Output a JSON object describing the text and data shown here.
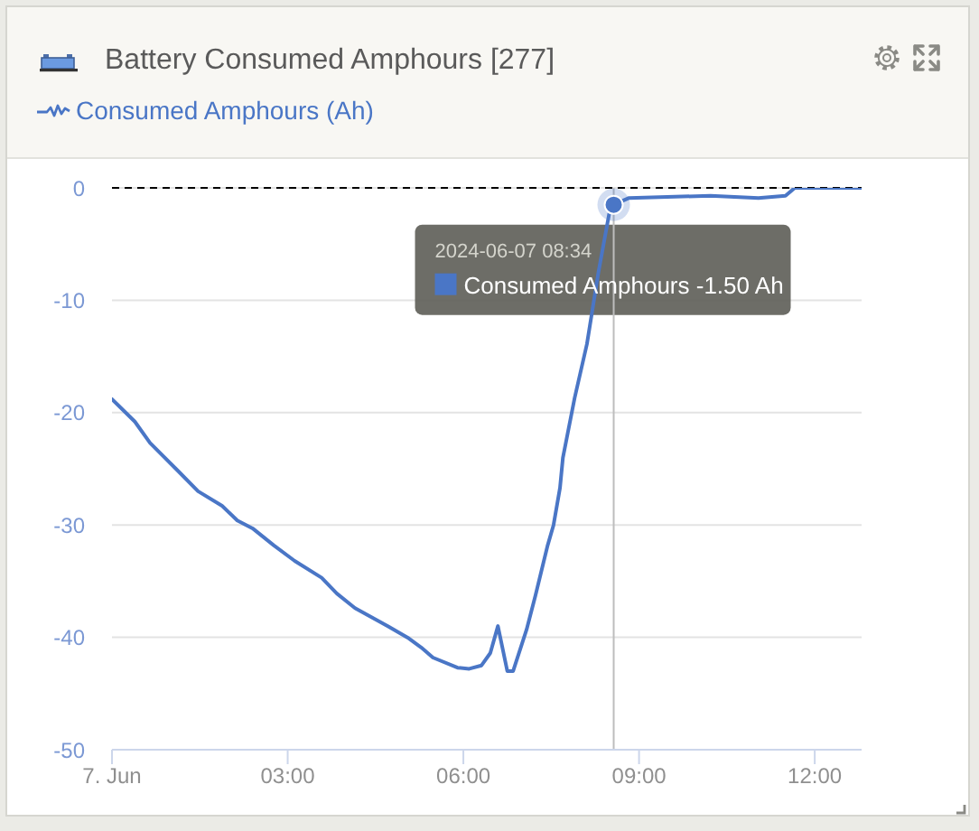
{
  "chart_data": {
    "type": "line",
    "title": "Battery Consumed Amphours [277]",
    "x": [
      0,
      0.39,
      0.65,
      1.13,
      1.47,
      1.88,
      2.14,
      2.4,
      2.76,
      3.12,
      3.58,
      3.84,
      4.15,
      4.71,
      5.07,
      5.28,
      5.48,
      5.9,
      6.1,
      6.31,
      6.46,
      6.59,
      6.75,
      6.85,
      7.08,
      7.23,
      7.44,
      7.54,
      7.65,
      7.7,
      7.9,
      8.11,
      8.31,
      8.49,
      8.567,
      8.83,
      10.22,
      11.04,
      11.5,
      11.66,
      12.79
    ],
    "series": [
      {
        "name": "Consumed Amphours (Ah)",
        "color": "#4a76c6",
        "values": [
          -18.8,
          -20.8,
          -22.7,
          -25.2,
          -27.0,
          -28.3,
          -29.6,
          -30.3,
          -31.8,
          -33.2,
          -34.7,
          -36.1,
          -37.4,
          -39.0,
          -40.1,
          -40.9,
          -41.8,
          -42.7,
          -42.8,
          -42.5,
          -41.4,
          -39.0,
          -43.0,
          -43.0,
          -39.3,
          -36.3,
          -31.8,
          -30.0,
          -26.7,
          -24.0,
          -18.7,
          -13.9,
          -7.4,
          -2.3,
          -1.5,
          -0.9,
          -0.7,
          -0.9,
          -0.7,
          0.0,
          0.0
        ]
      }
    ],
    "xlim": [
      0,
      12.8
    ],
    "xticks": [
      {
        "value": 0,
        "label": "7. Jun"
      },
      {
        "value": 3,
        "label": "03:00"
      },
      {
        "value": 6,
        "label": "06:00"
      },
      {
        "value": 9,
        "label": "09:00"
      },
      {
        "value": 12,
        "label": "12:00"
      }
    ],
    "ylim": [
      -50,
      0
    ],
    "yticks": [
      -50,
      -40,
      -30,
      -20,
      -10,
      0
    ],
    "grid": "y",
    "legend": "top left",
    "marker": "none",
    "ref_lines": [
      {
        "axis": "y",
        "value": 0,
        "color": "#000000",
        "line_style": "dashed"
      },
      {
        "axis": "x",
        "value": 8.567,
        "color": "#bdbdbd"
      }
    ],
    "annotations": [
      {
        "text": "2024-06-07 08:34",
        "x": 8.567,
        "y": -1.5
      },
      {
        "text": "Consumed Amphours -1.50 Ah",
        "x": 8.567,
        "y": -1.5
      }
    ]
  }
}
